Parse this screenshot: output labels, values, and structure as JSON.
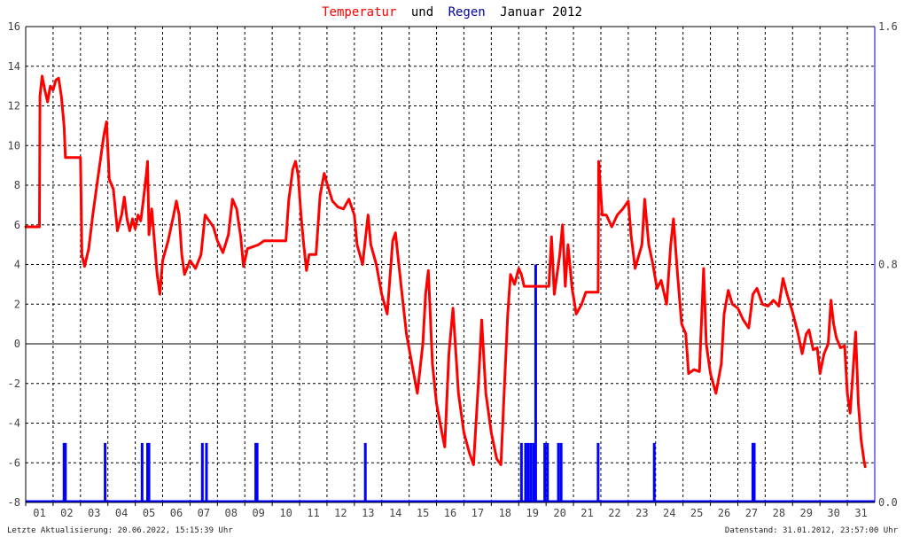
{
  "chart_data": {
    "type": "line",
    "title_parts": {
      "temperature_word": "Temperatur",
      "and_word": "und",
      "rain_word": "Regen",
      "period": "Januar 2012"
    },
    "colors": {
      "temperature": "#ff0000",
      "rain": "#0000ff",
      "grid": "#000000",
      "zero_line": "#000000",
      "axis_left": "#000000",
      "axis_right": "#0000ff"
    },
    "grid": true,
    "x_tick_labels": [
      "01",
      "02",
      "03",
      "04",
      "05",
      "06",
      "07",
      "08",
      "09",
      "10",
      "11",
      "12",
      "13",
      "14",
      "15",
      "16",
      "17",
      "18",
      "19",
      "20",
      "21",
      "22",
      "23",
      "24",
      "25",
      "26",
      "27",
      "28",
      "29",
      "30",
      "31"
    ],
    "x_range_days": [
      1,
      32
    ],
    "y_left": {
      "range": [
        -8,
        16
      ],
      "ticks": [
        "16",
        "14",
        "12",
        "10",
        "8",
        "6",
        "4",
        "2",
        "0",
        "-2",
        "-4",
        "-6",
        "-8"
      ]
    },
    "y_right": {
      "range": [
        0,
        1.6
      ],
      "ticks": [
        "1.6",
        "0.8",
        "0.0"
      ]
    },
    "series": [
      {
        "key": "temperature",
        "axis": "left",
        "points": [
          [
            1.0,
            5.9
          ],
          [
            1.5,
            5.9
          ],
          [
            1.52,
            12.5
          ],
          [
            1.6,
            13.5
          ],
          [
            1.7,
            12.8
          ],
          [
            1.8,
            12.2
          ],
          [
            1.9,
            13.0
          ],
          [
            2.0,
            12.8
          ],
          [
            2.1,
            13.3
          ],
          [
            2.2,
            13.4
          ],
          [
            2.3,
            12.5
          ],
          [
            2.4,
            11.0
          ],
          [
            2.45,
            9.4
          ],
          [
            3.0,
            9.4
          ],
          [
            3.05,
            4.5
          ],
          [
            3.15,
            3.9
          ],
          [
            3.3,
            4.8
          ],
          [
            3.45,
            6.5
          ],
          [
            3.6,
            8.0
          ],
          [
            3.75,
            9.5
          ],
          [
            3.85,
            10.5
          ],
          [
            3.95,
            11.2
          ],
          [
            4.05,
            8.3
          ],
          [
            4.2,
            7.8
          ],
          [
            4.35,
            5.7
          ],
          [
            4.5,
            6.5
          ],
          [
            4.6,
            7.4
          ],
          [
            4.7,
            6.3
          ],
          [
            4.8,
            5.7
          ],
          [
            4.9,
            6.3
          ],
          [
            5.0,
            5.8
          ],
          [
            5.1,
            6.5
          ],
          [
            5.2,
            6.2
          ],
          [
            5.3,
            7.3
          ],
          [
            5.4,
            8.5
          ],
          [
            5.45,
            9.2
          ],
          [
            5.5,
            5.5
          ],
          [
            5.6,
            6.8
          ],
          [
            5.7,
            5.2
          ],
          [
            5.8,
            3.5
          ],
          [
            5.9,
            2.5
          ],
          [
            6.0,
            4.2
          ],
          [
            6.2,
            5.2
          ],
          [
            6.4,
            6.5
          ],
          [
            6.5,
            7.2
          ],
          [
            6.6,
            6.5
          ],
          [
            6.7,
            4.5
          ],
          [
            6.8,
            3.5
          ],
          [
            7.0,
            4.2
          ],
          [
            7.2,
            3.8
          ],
          [
            7.4,
            4.5
          ],
          [
            7.55,
            6.5
          ],
          [
            7.7,
            6.2
          ],
          [
            7.85,
            5.9
          ],
          [
            8.0,
            5.2
          ],
          [
            8.2,
            4.6
          ],
          [
            8.4,
            5.5
          ],
          [
            8.55,
            7.3
          ],
          [
            8.7,
            6.8
          ],
          [
            8.85,
            5.4
          ],
          [
            8.95,
            3.9
          ],
          [
            9.1,
            4.8
          ],
          [
            9.3,
            4.9
          ],
          [
            9.5,
            5.0
          ],
          [
            9.7,
            5.2
          ],
          [
            10.5,
            5.2
          ],
          [
            10.6,
            7.2
          ],
          [
            10.75,
            8.8
          ],
          [
            10.85,
            9.2
          ],
          [
            10.95,
            8.5
          ],
          [
            11.05,
            6.5
          ],
          [
            11.15,
            5.0
          ],
          [
            11.25,
            3.7
          ],
          [
            11.35,
            4.5
          ],
          [
            11.6,
            4.5
          ],
          [
            11.75,
            7.5
          ],
          [
            11.9,
            8.6
          ],
          [
            12.0,
            8.1
          ],
          [
            12.2,
            7.2
          ],
          [
            12.4,
            6.9
          ],
          [
            12.6,
            6.8
          ],
          [
            12.8,
            7.3
          ],
          [
            13.0,
            6.5
          ],
          [
            13.1,
            5.0
          ],
          [
            13.3,
            4.0
          ],
          [
            13.5,
            6.5
          ],
          [
            13.6,
            5.0
          ],
          [
            13.8,
            4.0
          ],
          [
            14.0,
            2.5
          ],
          [
            14.2,
            1.5
          ],
          [
            14.4,
            5.2
          ],
          [
            14.5,
            5.6
          ],
          [
            14.7,
            3.0
          ],
          [
            14.9,
            0.5
          ],
          [
            15.1,
            -1.0
          ],
          [
            15.3,
            -2.5
          ],
          [
            15.5,
            0.0
          ],
          [
            15.6,
            2.5
          ],
          [
            15.7,
            3.7
          ],
          [
            15.85,
            -1.0
          ],
          [
            16.0,
            -3.0
          ],
          [
            16.2,
            -4.5
          ],
          [
            16.3,
            -5.2
          ],
          [
            16.45,
            -0.5
          ],
          [
            16.6,
            1.8
          ],
          [
            16.8,
            -2.5
          ],
          [
            17.0,
            -4.5
          ],
          [
            17.2,
            -5.5
          ],
          [
            17.35,
            -6.1
          ],
          [
            17.55,
            -1.5
          ],
          [
            17.65,
            1.2
          ],
          [
            17.8,
            -2.5
          ],
          [
            18.0,
            -4.5
          ],
          [
            18.2,
            -5.8
          ],
          [
            18.35,
            -6.1
          ],
          [
            18.5,
            -1.5
          ],
          [
            18.6,
            1.5
          ],
          [
            18.7,
            3.5
          ],
          [
            18.85,
            3.0
          ],
          [
            19.0,
            3.8
          ],
          [
            19.1,
            3.5
          ],
          [
            19.2,
            2.9
          ],
          [
            20.1,
            2.9
          ],
          [
            20.2,
            5.4
          ],
          [
            20.3,
            2.5
          ],
          [
            20.5,
            4.5
          ],
          [
            20.6,
            6.0
          ],
          [
            20.7,
            2.9
          ],
          [
            20.8,
            5.0
          ],
          [
            20.95,
            2.8
          ],
          [
            21.1,
            1.5
          ],
          [
            21.3,
            2.0
          ],
          [
            21.45,
            2.6
          ],
          [
            21.9,
            2.6
          ],
          [
            21.92,
            9.2
          ],
          [
            22.05,
            6.5
          ],
          [
            22.2,
            6.5
          ],
          [
            22.4,
            5.9
          ],
          [
            22.6,
            6.5
          ],
          [
            22.8,
            6.8
          ],
          [
            23.0,
            7.2
          ],
          [
            23.1,
            5.5
          ],
          [
            23.25,
            3.8
          ],
          [
            23.5,
            5.0
          ],
          [
            23.6,
            7.3
          ],
          [
            23.75,
            5.0
          ],
          [
            23.9,
            4.0
          ],
          [
            24.05,
            2.8
          ],
          [
            24.2,
            3.2
          ],
          [
            24.4,
            2.0
          ],
          [
            24.55,
            5.0
          ],
          [
            24.65,
            6.3
          ],
          [
            24.8,
            3.5
          ],
          [
            24.95,
            1.0
          ],
          [
            25.1,
            0.5
          ],
          [
            25.2,
            -1.5
          ],
          [
            25.4,
            -1.3
          ],
          [
            25.6,
            -1.4
          ],
          [
            25.75,
            3.8
          ],
          [
            25.85,
            0.0
          ],
          [
            26.0,
            -1.5
          ],
          [
            26.2,
            -2.5
          ],
          [
            26.4,
            -1.0
          ],
          [
            26.5,
            1.5
          ],
          [
            26.65,
            2.7
          ],
          [
            26.8,
            2.0
          ],
          [
            27.0,
            1.8
          ],
          [
            27.2,
            1.2
          ],
          [
            27.4,
            0.8
          ],
          [
            27.55,
            2.5
          ],
          [
            27.7,
            2.8
          ],
          [
            27.9,
            2.0
          ],
          [
            28.1,
            1.9
          ],
          [
            28.3,
            2.2
          ],
          [
            28.5,
            1.9
          ],
          [
            28.65,
            3.3
          ],
          [
            28.8,
            2.5
          ],
          [
            29.0,
            1.6
          ],
          [
            29.2,
            0.5
          ],
          [
            29.35,
            -0.5
          ],
          [
            29.5,
            0.5
          ],
          [
            29.6,
            0.7
          ],
          [
            29.75,
            -0.3
          ],
          [
            29.9,
            -0.2
          ],
          [
            30.0,
            -1.5
          ],
          [
            30.15,
            -0.5
          ],
          [
            30.3,
            0.0
          ],
          [
            30.4,
            2.2
          ],
          [
            30.5,
            1.0
          ],
          [
            30.6,
            0.3
          ],
          [
            30.75,
            -0.2
          ],
          [
            30.9,
            -0.1
          ],
          [
            31.0,
            -2.5
          ],
          [
            31.1,
            -3.5
          ],
          [
            31.2,
            -1.5
          ],
          [
            31.3,
            0.6
          ],
          [
            31.4,
            -3.0
          ],
          [
            31.5,
            -4.8
          ],
          [
            31.6,
            -5.8
          ],
          [
            31.65,
            -6.2
          ]
        ]
      },
      {
        "key": "rain",
        "axis": "right",
        "points": [
          [
            2.4,
            0.2
          ],
          [
            2.45,
            0.2
          ],
          [
            3.9,
            0.2
          ],
          [
            5.25,
            0.2
          ],
          [
            5.45,
            0.2
          ],
          [
            5.5,
            0.2
          ],
          [
            7.45,
            0.2
          ],
          [
            7.6,
            0.2
          ],
          [
            9.4,
            0.2
          ],
          [
            9.45,
            0.2
          ],
          [
            13.4,
            0.2
          ],
          [
            19.1,
            0.2
          ],
          [
            19.25,
            0.2
          ],
          [
            19.35,
            0.2
          ],
          [
            19.45,
            0.2
          ],
          [
            19.55,
            0.2
          ],
          [
            19.62,
            0.8
          ],
          [
            19.95,
            0.2
          ],
          [
            20.05,
            0.2
          ],
          [
            20.45,
            0.2
          ],
          [
            20.55,
            0.2
          ],
          [
            21.9,
            0.2
          ],
          [
            23.95,
            0.2
          ],
          [
            27.55,
            0.2
          ],
          [
            27.6,
            0.2
          ]
        ]
      }
    ]
  },
  "footer": {
    "last_update": "Letzte Aktualisierung: 20.06.2022, 15:15:39 Uhr",
    "data_state": "Datenstand: 31.01.2012, 23:57:00 Uhr"
  }
}
